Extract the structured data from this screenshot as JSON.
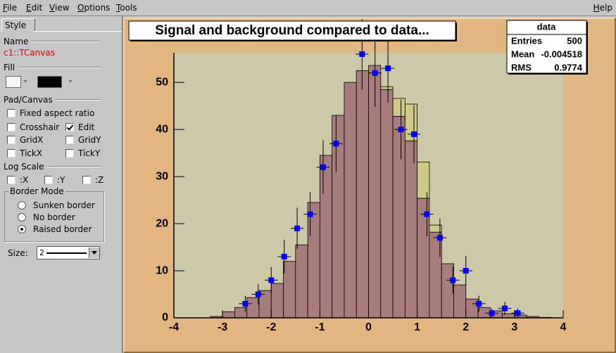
{
  "menu": [
    "File",
    "Edit",
    "View",
    "Options",
    "Tools"
  ],
  "help": "Help",
  "editor": {
    "tab": "Style",
    "name_label": "Name",
    "name": "c1::TCanvas",
    "fill_label": "Fill",
    "pad_label": "Pad/Canvas",
    "checkboxes": [
      {
        "label": "Fixed aspect ratio",
        "checked": false
      },
      {
        "label": "Crosshair",
        "checked": false
      },
      {
        "label": "Edit",
        "checked": true
      },
      {
        "label": "GridX",
        "checked": false
      },
      {
        "label": "GridY",
        "checked": false
      },
      {
        "label": "TickX",
        "checked": false
      },
      {
        "label": "TickY",
        "checked": false
      }
    ],
    "log_label": "Log Scale",
    "log_checkboxes": [
      {
        "label": ":X",
        "checked": false
      },
      {
        "label": ":Y",
        "checked": false
      },
      {
        "label": ":Z",
        "checked": false
      }
    ],
    "border_label": "Border Mode",
    "radios": [
      "Sunken border",
      "No border",
      "Raised border"
    ],
    "radio_selected": 2,
    "size_label": "Size:",
    "size": "2"
  },
  "chart_data": {
    "type": "histogram",
    "title": "Signal and background compared to data...",
    "bins": [
      -4,
      -3.75,
      -3.5,
      -3.25,
      -3,
      -2.75,
      -2.5,
      -2.25,
      -2,
      -1.75,
      -1.5,
      -1.25,
      -1,
      -0.75,
      -0.5,
      -0.25,
      0,
      0.25,
      0.5,
      0.75,
      1,
      1.25,
      1.5,
      1.75,
      2,
      2.25,
      2.5,
      2.75,
      3,
      3.25,
      3.5,
      3.75,
      4
    ],
    "stacked": true,
    "series": [
      {
        "color": "#a77c7c",
        "values": [
          0,
          0,
          0,
          0.3,
          1.3,
          2.2,
          4.3,
          5.8,
          7.3,
          12,
          15.5,
          24.5,
          34.5,
          43,
          50,
          52.5,
          53.6,
          48.5,
          42.8,
          37.6,
          25.4,
          18.2,
          11.5,
          7,
          4,
          2.2,
          1.5,
          0.9,
          0.6,
          0.3,
          0.1,
          0
        ]
      },
      {
        "color": "#cfcb86",
        "values": [
          0,
          0,
          0,
          0,
          0,
          0,
          0,
          0,
          0,
          0,
          0,
          0,
          0,
          0,
          0,
          0,
          0,
          0.6,
          3.8,
          7.8,
          7.7,
          1.5,
          0,
          0,
          0,
          0,
          0,
          0,
          0,
          0,
          0,
          0
        ]
      }
    ],
    "points": {
      "color": "#0000ff",
      "x": [
        -2.533,
        -2.267,
        -2,
        -1.733,
        -1.467,
        -1.2,
        -0.933,
        -0.667,
        -0.133,
        0.133,
        0.4,
        0.667,
        0.933,
        1.2,
        1.467,
        1.733,
        2,
        2.267,
        2.533,
        2.8,
        3.067
      ],
      "values": [
        3,
        5,
        8,
        13,
        19,
        22,
        32,
        37,
        56,
        52,
        53,
        40,
        39,
        22,
        17,
        8,
        10,
        3,
        1,
        2,
        1
      ],
      "errors": [
        1.7,
        2.2,
        2.8,
        3.6,
        4.4,
        4.7,
        5.7,
        6.1,
        7.5,
        7.2,
        7.3,
        6.3,
        6.2,
        4.7,
        4.1,
        2.8,
        3.2,
        1.7,
        1,
        1.4,
        1
      ],
      "xerr": 0.133
    },
    "xlim": [
      -4,
      4
    ],
    "ylim": [
      0,
      56.3
    ],
    "xticks": [
      -4,
      -3,
      -2,
      -1,
      0,
      1,
      2,
      3,
      4
    ],
    "yticks": [
      0,
      10,
      20,
      30,
      40,
      50
    ],
    "stats": {
      "name": "data",
      "rows": [
        {
          "label": "Entries",
          "value": 500
        },
        {
          "label": "Mean",
          "value": -0.004518
        },
        {
          "label": "RMS",
          "value": 0.9774
        }
      ]
    }
  }
}
